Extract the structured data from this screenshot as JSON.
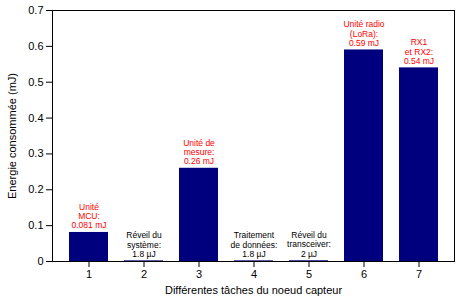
{
  "chart_data": {
    "type": "bar",
    "x_label": "Différentes tâches du noeud capteur",
    "y_label": "Energie consommée (mJ)",
    "categories": [
      "1",
      "2",
      "3",
      "4",
      "5",
      "6",
      "7"
    ],
    "values": [
      0.081,
      0.0018,
      0.26,
      0.0018,
      0.002,
      0.59,
      0.54
    ],
    "color": "#00007f",
    "ylim": [
      0,
      0.7
    ],
    "yticks": [
      0,
      0.1,
      0.2,
      0.3,
      0.4,
      0.5,
      0.6,
      0.7
    ],
    "grid": false,
    "annotations": [
      {
        "category": "1",
        "text": "Unité\nMCU:\n0.081 mJ",
        "color": "#ff0000"
      },
      {
        "category": "2",
        "text": "Réveil du\nsystème:\n1.8 µJ",
        "color": "#000000"
      },
      {
        "category": "3",
        "text": "Unité de\nmesure:\n0.26 mJ",
        "color": "#ff0000"
      },
      {
        "category": "4",
        "text": "Traitement\nde données:\n1.8 µJ",
        "color": "#000000"
      },
      {
        "category": "5",
        "text": "Réveil du\ntransceiver:\n2 µJ",
        "color": "#000000"
      },
      {
        "category": "6",
        "text": "Unité radio\n(LoRa):\n0.59 mJ",
        "color": "#ff0000"
      },
      {
        "category": "7",
        "text": "RX1\net RX2:\n0.54 mJ",
        "color": "#ff0000"
      }
    ]
  }
}
